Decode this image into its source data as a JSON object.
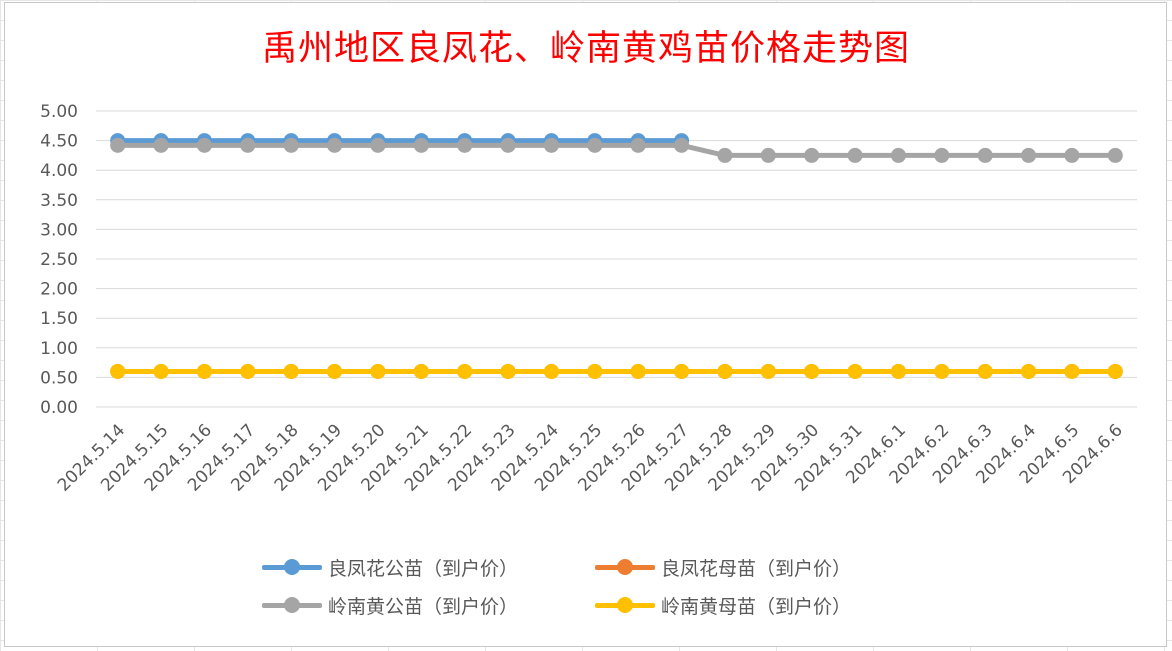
{
  "chart_data": {
    "type": "line",
    "title": "禹州地区良凤花、岭南黄鸡苗价格走势图",
    "xlabel": "",
    "ylabel": "",
    "categories": [
      "2024.5.14",
      "2024.5.15",
      "2024.5.16",
      "2024.5.17",
      "2024.5.18",
      "2024.5.19",
      "2024.5.20",
      "2024.5.21",
      "2024.5.22",
      "2024.5.23",
      "2024.5.24",
      "2024.5.25",
      "2024.5.26",
      "2024.5.27",
      "2024.5.28",
      "2024.5.29",
      "2024.5.30",
      "2024.5.31",
      "2024.6.1",
      "2024.6.2",
      "2024.6.3",
      "2024.6.4",
      "2024.6.5",
      "2024.6.6"
    ],
    "ylim": [
      0,
      5
    ],
    "yticks": [
      "0.00",
      "0.50",
      "1.00",
      "1.50",
      "2.00",
      "2.50",
      "3.00",
      "3.50",
      "4.00",
      "4.50",
      "5.00"
    ],
    "grid": true,
    "legend_position": "bottom",
    "series": [
      {
        "name": "良凤花公苗（到户价）",
        "color": "#5b9bd5",
        "values": [
          4.5,
          4.5,
          4.5,
          4.5,
          4.5,
          4.5,
          4.5,
          4.5,
          4.5,
          4.5,
          4.5,
          4.5,
          4.5,
          4.5,
          null,
          null,
          null,
          null,
          null,
          null,
          null,
          null,
          null,
          null
        ]
      },
      {
        "name": "良凤花母苗（到户价）",
        "color": "#ed7d31",
        "values": [
          0.6,
          0.6,
          0.6,
          0.6,
          0.6,
          0.6,
          0.6,
          0.6,
          0.6,
          0.6,
          0.6,
          0.6,
          0.6,
          0.6,
          0.6,
          0.6,
          0.6,
          0.6,
          0.6,
          0.6,
          0.6,
          0.6,
          0.6,
          0.6
        ]
      },
      {
        "name": "岭南黄公苗（到户价）",
        "color": "#a5a5a5",
        "values": [
          4.42,
          4.42,
          4.42,
          4.42,
          4.42,
          4.42,
          4.42,
          4.42,
          4.42,
          4.42,
          4.42,
          4.42,
          4.42,
          4.42,
          4.25,
          4.25,
          4.25,
          4.25,
          4.25,
          4.25,
          4.25,
          4.25,
          4.25,
          4.25
        ]
      },
      {
        "name": "岭南黄母苗（到户价）",
        "color": "#ffc000",
        "values": [
          0.6,
          0.6,
          0.6,
          0.6,
          0.6,
          0.6,
          0.6,
          0.6,
          0.6,
          0.6,
          0.6,
          0.6,
          0.6,
          0.6,
          0.6,
          0.6,
          0.6,
          0.6,
          0.6,
          0.6,
          0.6,
          0.6,
          0.6,
          0.6
        ]
      }
    ]
  }
}
